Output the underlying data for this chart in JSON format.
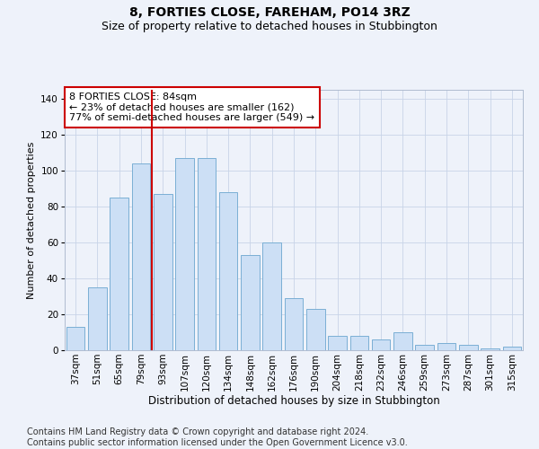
{
  "title": "8, FORTIES CLOSE, FAREHAM, PO14 3RZ",
  "subtitle": "Size of property relative to detached houses in Stubbington",
  "xlabel": "Distribution of detached houses by size in Stubbington",
  "ylabel": "Number of detached properties",
  "categories": [
    "37sqm",
    "51sqm",
    "65sqm",
    "79sqm",
    "93sqm",
    "107sqm",
    "120sqm",
    "134sqm",
    "148sqm",
    "162sqm",
    "176sqm",
    "190sqm",
    "204sqm",
    "218sqm",
    "232sqm",
    "246sqm",
    "259sqm",
    "273sqm",
    "287sqm",
    "301sqm",
    "315sqm"
  ],
  "values": [
    13,
    35,
    85,
    104,
    87,
    107,
    107,
    88,
    53,
    60,
    29,
    23,
    8,
    8,
    6,
    10,
    3,
    4,
    3,
    1,
    2
  ],
  "bar_color": "#ccdff5",
  "bar_edge_color": "#7aafd4",
  "vline_x_index": 3.5,
  "vline_color": "#cc0000",
  "ylim": [
    0,
    145
  ],
  "yticks": [
    0,
    20,
    40,
    60,
    80,
    100,
    120,
    140
  ],
  "grid_color": "#c8d4e8",
  "background_color": "#eef2fa",
  "annotation_text": "8 FORTIES CLOSE: 84sqm\n← 23% of detached houses are smaller (162)\n77% of semi-detached houses are larger (549) →",
  "annotation_box_color": "#ffffff",
  "annotation_box_edge_color": "#cc0000",
  "footer_text": "Contains HM Land Registry data © Crown copyright and database right 2024.\nContains public sector information licensed under the Open Government Licence v3.0.",
  "title_fontsize": 10,
  "subtitle_fontsize": 9,
  "xlabel_fontsize": 8.5,
  "ylabel_fontsize": 8,
  "tick_fontsize": 7.5,
  "annotation_fontsize": 8,
  "footer_fontsize": 7
}
